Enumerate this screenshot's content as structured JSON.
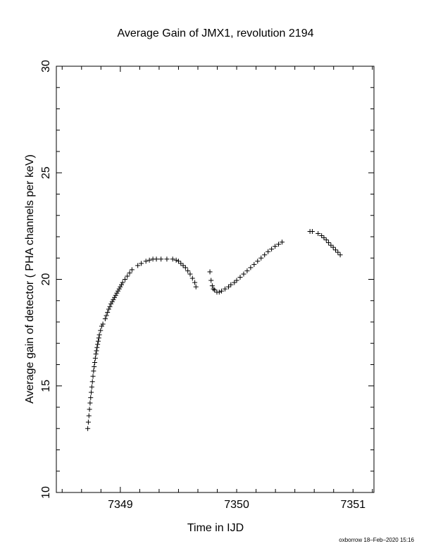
{
  "chart_data": {
    "type": "scatter",
    "title": "Average Gain of JMX1, revolution 2194",
    "xlabel": "Time in IJD",
    "ylabel": "Average gain of detector ( PHA channels per keV)",
    "xlim": [
      7348.45,
      7351.18
    ],
    "ylim": [
      10,
      30
    ],
    "x_ticks": [
      7349,
      7350,
      7351
    ],
    "y_ticks": [
      10,
      15,
      20,
      25,
      30
    ],
    "x_minor_step": 0.16667,
    "y_minor_step": 1,
    "marker": "plus",
    "grid": false,
    "series": [
      {
        "color": "#000000",
        "points": [
          [
            7348.72,
            13.0
          ],
          [
            7348.725,
            13.3
          ],
          [
            7348.73,
            13.6
          ],
          [
            7348.735,
            13.9
          ],
          [
            7348.74,
            14.2
          ],
          [
            7348.745,
            14.45
          ],
          [
            7348.75,
            14.7
          ],
          [
            7348.755,
            14.95
          ],
          [
            7348.76,
            15.2
          ],
          [
            7348.765,
            15.45
          ],
          [
            7348.77,
            15.7
          ],
          [
            7348.775,
            15.9
          ],
          [
            7348.78,
            16.1
          ],
          [
            7348.785,
            16.3
          ],
          [
            7348.79,
            16.5
          ],
          [
            7348.795,
            16.65
          ],
          [
            7348.8,
            16.8
          ],
          [
            7348.805,
            16.95
          ],
          [
            7348.81,
            17.1
          ],
          [
            7348.815,
            17.25
          ],
          [
            7348.82,
            17.4
          ],
          [
            7348.83,
            17.6
          ],
          [
            7348.84,
            17.8
          ],
          [
            7348.85,
            17.9
          ],
          [
            7348.87,
            18.15
          ],
          [
            7348.88,
            18.3
          ],
          [
            7348.89,
            18.45
          ],
          [
            7348.9,
            18.6
          ],
          [
            7348.91,
            18.72
          ],
          [
            7348.92,
            18.85
          ],
          [
            7348.93,
            18.95
          ],
          [
            7348.94,
            19.05
          ],
          [
            7348.95,
            19.15
          ],
          [
            7348.96,
            19.25
          ],
          [
            7348.97,
            19.35
          ],
          [
            7348.98,
            19.45
          ],
          [
            7348.99,
            19.55
          ],
          [
            7349.0,
            19.65
          ],
          [
            7349.01,
            19.75
          ],
          [
            7349.02,
            19.85
          ],
          [
            7349.04,
            20.0
          ],
          [
            7349.06,
            20.15
          ],
          [
            7349.08,
            20.3
          ],
          [
            7349.1,
            20.45
          ],
          [
            7349.15,
            20.65
          ],
          [
            7349.18,
            20.75
          ],
          [
            7349.22,
            20.85
          ],
          [
            7349.25,
            20.9
          ],
          [
            7349.28,
            20.95
          ],
          [
            7349.31,
            20.95
          ],
          [
            7349.35,
            20.95
          ],
          [
            7349.4,
            20.95
          ],
          [
            7349.45,
            20.95
          ],
          [
            7349.48,
            20.9
          ],
          [
            7349.5,
            20.85
          ],
          [
            7349.52,
            20.75
          ],
          [
            7349.54,
            20.65
          ],
          [
            7349.56,
            20.55
          ],
          [
            7349.58,
            20.4
          ],
          [
            7349.6,
            20.25
          ],
          [
            7349.62,
            20.05
          ],
          [
            7349.64,
            19.85
          ],
          [
            7349.65,
            19.65
          ],
          [
            7349.77,
            20.35
          ],
          [
            7349.78,
            19.95
          ],
          [
            7349.79,
            19.7
          ],
          [
            7349.8,
            19.55
          ],
          [
            7349.81,
            19.5
          ],
          [
            7349.83,
            19.4
          ],
          [
            7349.85,
            19.4
          ],
          [
            7349.87,
            19.45
          ],
          [
            7349.9,
            19.55
          ],
          [
            7349.93,
            19.65
          ],
          [
            7349.95,
            19.75
          ],
          [
            7349.98,
            19.85
          ],
          [
            7350.0,
            19.95
          ],
          [
            7350.03,
            20.1
          ],
          [
            7350.06,
            20.25
          ],
          [
            7350.09,
            20.4
          ],
          [
            7350.12,
            20.55
          ],
          [
            7350.15,
            20.7
          ],
          [
            7350.18,
            20.85
          ],
          [
            7350.21,
            21.0
          ],
          [
            7350.24,
            21.15
          ],
          [
            7350.27,
            21.3
          ],
          [
            7350.3,
            21.42
          ],
          [
            7350.33,
            21.55
          ],
          [
            7350.36,
            21.65
          ],
          [
            7350.39,
            21.75
          ],
          [
            7350.63,
            22.25
          ],
          [
            7350.65,
            22.25
          ],
          [
            7350.7,
            22.15
          ],
          [
            7350.73,
            22.05
          ],
          [
            7350.75,
            21.95
          ],
          [
            7350.77,
            21.85
          ],
          [
            7350.79,
            21.72
          ],
          [
            7350.81,
            21.6
          ],
          [
            7350.83,
            21.5
          ],
          [
            7350.85,
            21.38
          ],
          [
            7350.87,
            21.27
          ],
          [
            7350.89,
            21.15
          ]
        ]
      }
    ],
    "footer": "oxborrow 18–Feb–2020 15:16"
  }
}
